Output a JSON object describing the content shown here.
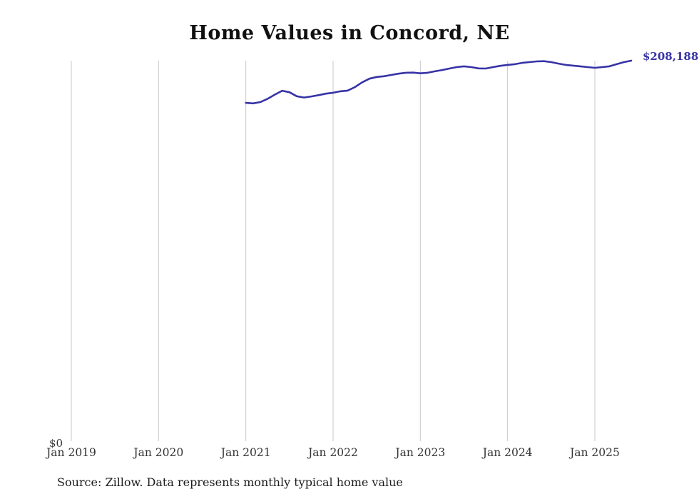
{
  "chart_data": {
    "type": "line",
    "title": "Home Values in Concord, NE",
    "x_axis": {
      "tick_labels": [
        "Jan 2019",
        "Jan 2020",
        "Jan 2021",
        "Jan 2022",
        "Jan 2023",
        "Jan 2024",
        "Jan 2025"
      ],
      "grid": true,
      "grid_color": "#c9c9c9"
    },
    "y_axis": {
      "min": 0,
      "min_label": "$0",
      "end_value": 208188,
      "end_label": "$208,188"
    },
    "legend": false,
    "series": [
      {
        "name": "Monthly typical home value",
        "color": "#3733a6",
        "start": "2021-01",
        "frequency": "monthly",
        "values": [
          185200,
          184900,
          185600,
          187400,
          189700,
          191800,
          191000,
          188800,
          188100,
          188700,
          189400,
          190200,
          190700,
          191500,
          191900,
          193800,
          196400,
          198400,
          199300,
          199700,
          200400,
          201100,
          201600,
          201700,
          201300,
          201600,
          202400,
          203100,
          203900,
          204700,
          205100,
          204700,
          204000,
          203900,
          204700,
          205400,
          205900,
          206300,
          207000,
          207400,
          207800,
          207900,
          207400,
          206600,
          205900,
          205500,
          205100,
          204700,
          204300,
          204700,
          205100,
          206300,
          207400,
          208188
        ]
      }
    ],
    "source": "Source: Zillow. Data represents monthly typical home value"
  }
}
